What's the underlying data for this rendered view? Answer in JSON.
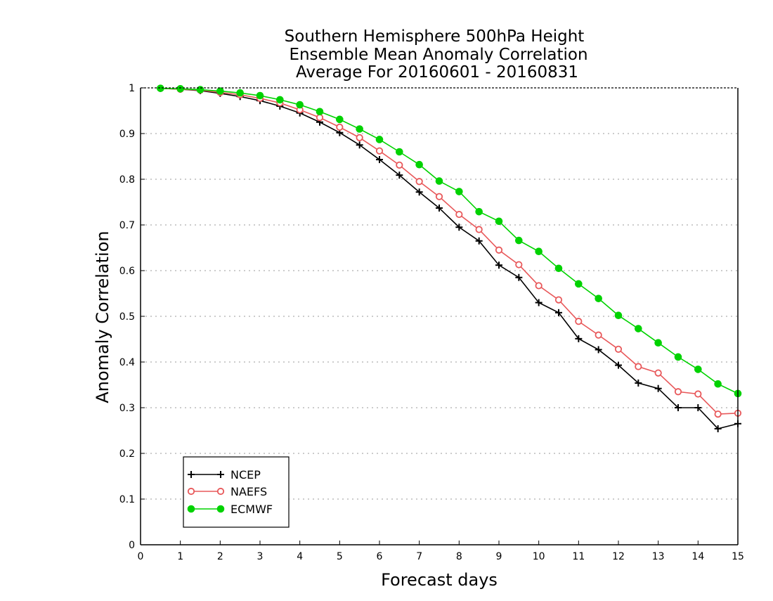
{
  "chart_data": {
    "type": "line",
    "title_lines": [
      "Southern Hemisphere 500hPa Height",
      "Ensemble Mean Anomaly Correlation",
      "Average For 20160601 - 20160831"
    ],
    "xlabel": "Forecast days",
    "ylabel": "Anomaly Correlation",
    "xlim": [
      0,
      15
    ],
    "ylim": [
      0,
      1
    ],
    "xticks": [
      "0",
      "1",
      "2",
      "3",
      "4",
      "5",
      "6",
      "7",
      "8",
      "9",
      "10",
      "11",
      "12",
      "13",
      "14",
      "15"
    ],
    "yticks": [
      "0",
      "0.1",
      "0.2",
      "0.3",
      "0.4",
      "0.5",
      "0.6",
      "0.7",
      "0.8",
      "0.9",
      "1"
    ],
    "grid": "horizontal dotted",
    "legend_position": "bottom-left",
    "x": [
      0.5,
      1,
      1.5,
      2,
      2.5,
      3,
      3.5,
      4,
      4.5,
      5,
      5.5,
      6,
      6.5,
      7,
      7.5,
      8,
      8.5,
      9,
      9.5,
      10,
      10.5,
      11,
      11.5,
      12,
      12.5,
      13,
      13.5,
      14,
      14.5,
      15
    ],
    "series": [
      {
        "name": "NCEP",
        "color": "#000000",
        "marker": "plus",
        "values": [
          0.999,
          0.997,
          0.994,
          0.988,
          0.981,
          0.972,
          0.96,
          0.945,
          0.925,
          0.902,
          0.875,
          0.843,
          0.809,
          0.772,
          0.737,
          0.695,
          0.665,
          0.612,
          0.585,
          0.53,
          0.508,
          0.451,
          0.427,
          0.393,
          0.354,
          0.342,
          0.3,
          0.3,
          0.254,
          0.265
        ]
      },
      {
        "name": "NAEFS",
        "color": "#e8585a",
        "marker": "open-circle",
        "values": [
          0.999,
          0.997,
          0.995,
          0.99,
          0.985,
          0.977,
          0.967,
          0.952,
          0.935,
          0.914,
          0.891,
          0.862,
          0.831,
          0.795,
          0.762,
          0.723,
          0.69,
          0.645,
          0.613,
          0.567,
          0.536,
          0.489,
          0.459,
          0.428,
          0.39,
          0.376,
          0.335,
          0.33,
          0.286,
          0.288
        ]
      },
      {
        "name": "ECMWF",
        "color": "#00d200",
        "marker": "filled-circle",
        "values": [
          0.999,
          0.998,
          0.996,
          0.993,
          0.989,
          0.983,
          0.974,
          0.963,
          0.948,
          0.931,
          0.91,
          0.887,
          0.86,
          0.832,
          0.796,
          0.773,
          0.729,
          0.708,
          0.666,
          0.642,
          0.605,
          0.571,
          0.539,
          0.502,
          0.473,
          0.442,
          0.411,
          0.384,
          0.352,
          0.331
        ]
      }
    ]
  }
}
